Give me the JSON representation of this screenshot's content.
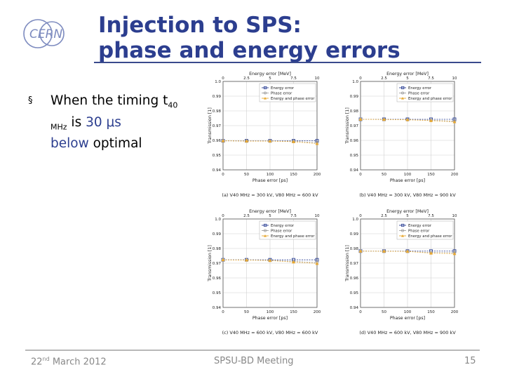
{
  "slide": {
    "title_line1": "Injection to SPS:",
    "title_line2": "phase and energy errors",
    "logo_text": "CERN"
  },
  "bullet": {
    "mark": "§",
    "text_before": "When the timing t",
    "sub": "40 MHz",
    "text_mid": " is ",
    "hl1": "30 μs",
    "hl2": "below",
    "text_after": " optimal"
  },
  "footer": {
    "date_day": "22",
    "date_sup": "nd",
    "date_rest": " March 2012",
    "meeting": "SPSU-BD Meeting",
    "page": "15"
  },
  "colors": {
    "title": "#2c3e8f",
    "energy": "#2a3f94",
    "phase": "#a0a0a0",
    "both": "#e8a830"
  },
  "chart_data": [
    {
      "type": "line",
      "caption": "(a) V40 MHz = 300 kV, V80 MHz = 600 kV",
      "xlabel": "Phase error [ps]",
      "ylabel": "Transmission [1]",
      "top_xlabel": "Energy error [MeV]",
      "xticks": [
        "0",
        "50",
        "100",
        "150",
        "200"
      ],
      "top_ticks": [
        "0",
        "2.5",
        "5",
        "7.5",
        "10"
      ],
      "yticks": [
        "1.0",
        "0.99",
        "0.98",
        "0.97",
        "0.96",
        "0.95",
        "0.94"
      ],
      "xlim": [
        0,
        200
      ],
      "ylim": [
        0.94,
        1.0
      ],
      "legend": [
        "Energy error",
        "Phase error",
        "Energy and phase error"
      ],
      "x": [
        0,
        50,
        100,
        150,
        200
      ],
      "series": [
        {
          "name": "Energy error",
          "values": [
            0.9597,
            0.9597,
            0.9597,
            0.9597,
            0.9597
          ]
        },
        {
          "name": "Phase error",
          "values": [
            0.9597,
            0.9595,
            0.9595,
            0.9594,
            0.9585
          ]
        },
        {
          "name": "Energy and phase error",
          "values": [
            0.9597,
            0.9595,
            0.9595,
            0.9591,
            0.9578
          ]
        }
      ]
    },
    {
      "type": "line",
      "caption": "(b) V40 MHz = 300 kV, V80 MHz = 900 kV",
      "xlabel": "Phase error [ps]",
      "ylabel": "Transmission [1]",
      "top_xlabel": "Energy error [MeV]",
      "xticks": [
        "0",
        "50",
        "100",
        "150",
        "200"
      ],
      "top_ticks": [
        "0",
        "2.5",
        "5",
        "7.5",
        "10"
      ],
      "yticks": [
        "1.0",
        "0.99",
        "0.98",
        "0.97",
        "0.96",
        "0.95",
        "0.94"
      ],
      "xlim": [
        0,
        200
      ],
      "ylim": [
        0.94,
        1.0
      ],
      "legend": [
        "Energy error",
        "Phase error",
        "Energy and phase error"
      ],
      "x": [
        0,
        50,
        100,
        150,
        200
      ],
      "series": [
        {
          "name": "Energy error",
          "values": [
            0.9743,
            0.9743,
            0.9743,
            0.9743,
            0.9743
          ]
        },
        {
          "name": "Phase error",
          "values": [
            0.9743,
            0.9741,
            0.974,
            0.9737,
            0.973
          ]
        },
        {
          "name": "Energy and phase error",
          "values": [
            0.9743,
            0.9742,
            0.974,
            0.9734,
            0.9726
          ]
        }
      ]
    },
    {
      "type": "line",
      "caption": "(c) V40 MHz = 600 kV, V80 MHz = 600 kV",
      "xlabel": "Phase error [ps]",
      "ylabel": "Transmission [1]",
      "top_xlabel": "Energy error [MeV]",
      "xticks": [
        "0",
        "50",
        "100",
        "150",
        "200"
      ],
      "top_ticks": [
        "0",
        "2.5",
        "5",
        "7.5",
        "10"
      ],
      "yticks": [
        "1.0",
        "0.99",
        "0.98",
        "0.97",
        "0.96",
        "0.95",
        "0.94"
      ],
      "xlim": [
        0,
        200
      ],
      "ylim": [
        0.94,
        1.0
      ],
      "legend": [
        "Energy error",
        "Phase error",
        "Energy and phase error"
      ],
      "x": [
        0,
        50,
        100,
        150,
        200
      ],
      "series": [
        {
          "name": "Energy error",
          "values": [
            0.9723,
            0.9723,
            0.9723,
            0.9723,
            0.9723
          ]
        },
        {
          "name": "Phase error",
          "values": [
            0.9723,
            0.9722,
            0.972,
            0.9712,
            0.9705
          ]
        },
        {
          "name": "Energy and phase error",
          "values": [
            0.9723,
            0.9721,
            0.9718,
            0.9708,
            0.9698
          ]
        }
      ]
    },
    {
      "type": "line",
      "caption": "(d) V40 MHz = 600 kV, V80 MHz = 900 kV",
      "xlabel": "Phase error [ps]",
      "ylabel": "Transmission [1]",
      "top_xlabel": "Energy error [MeV]",
      "xticks": [
        "0",
        "50",
        "100",
        "150",
        "200"
      ],
      "top_ticks": [
        "0",
        "2.5",
        "5",
        "7.5",
        "10"
      ],
      "yticks": [
        "1.0",
        "0.99",
        "0.98",
        "0.97",
        "0.96",
        "0.95",
        "0.94"
      ],
      "xlim": [
        0,
        200
      ],
      "ylim": [
        0.94,
        1.0
      ],
      "legend": [
        "Energy error",
        "Phase error",
        "Energy and phase error"
      ],
      "x": [
        0,
        50,
        100,
        150,
        200
      ],
      "series": [
        {
          "name": "Energy error",
          "values": [
            0.9782,
            0.9782,
            0.9782,
            0.9782,
            0.9782
          ]
        },
        {
          "name": "Phase error",
          "values": [
            0.9782,
            0.9781,
            0.978,
            0.9773,
            0.9772
          ]
        },
        {
          "name": "Energy and phase error",
          "values": [
            0.9782,
            0.9781,
            0.978,
            0.9768,
            0.9765
          ]
        }
      ]
    }
  ]
}
